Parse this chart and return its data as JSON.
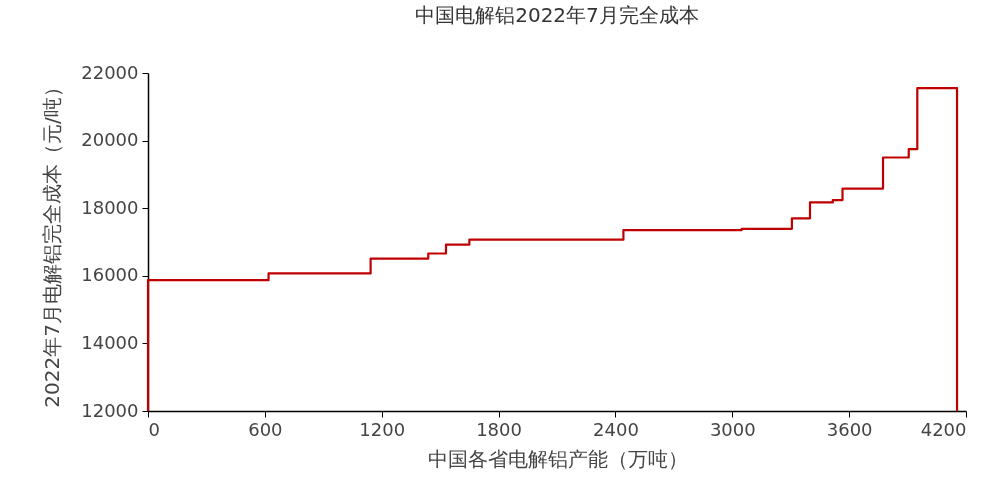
{
  "chart_data": {
    "type": "step",
    "title": "中国电解铝2022年7月完全成本",
    "xlabel": "中国各省电解铝产能（万吨）",
    "ylabel": "2022年7月电解铝完全成本（元/吨）",
    "x": [
      0,
      0,
      619,
      1143,
      1439,
      1530,
      1650,
      2441,
      3048,
      3306,
      3399,
      3516,
      3566,
      3774,
      3906,
      3950,
      4154
    ],
    "series": [
      {
        "color": "#c00000",
        "values": [
          12000,
          15870,
          16070,
          16510,
          16660,
          16920,
          17070,
          17350,
          17390,
          17700,
          18170,
          18240,
          18580,
          19500,
          19750,
          21550,
          12000
        ]
      }
    ],
    "xlim": [
      0,
      4200
    ],
    "xticks": [
      0,
      600,
      1200,
      1800,
      2400,
      3000,
      3600,
      4200
    ],
    "ylim": [
      12000,
      22000
    ],
    "yticks": [
      12000,
      14000,
      16000,
      18000,
      20000,
      22000
    ],
    "grid": false,
    "line_style": "solid"
  }
}
